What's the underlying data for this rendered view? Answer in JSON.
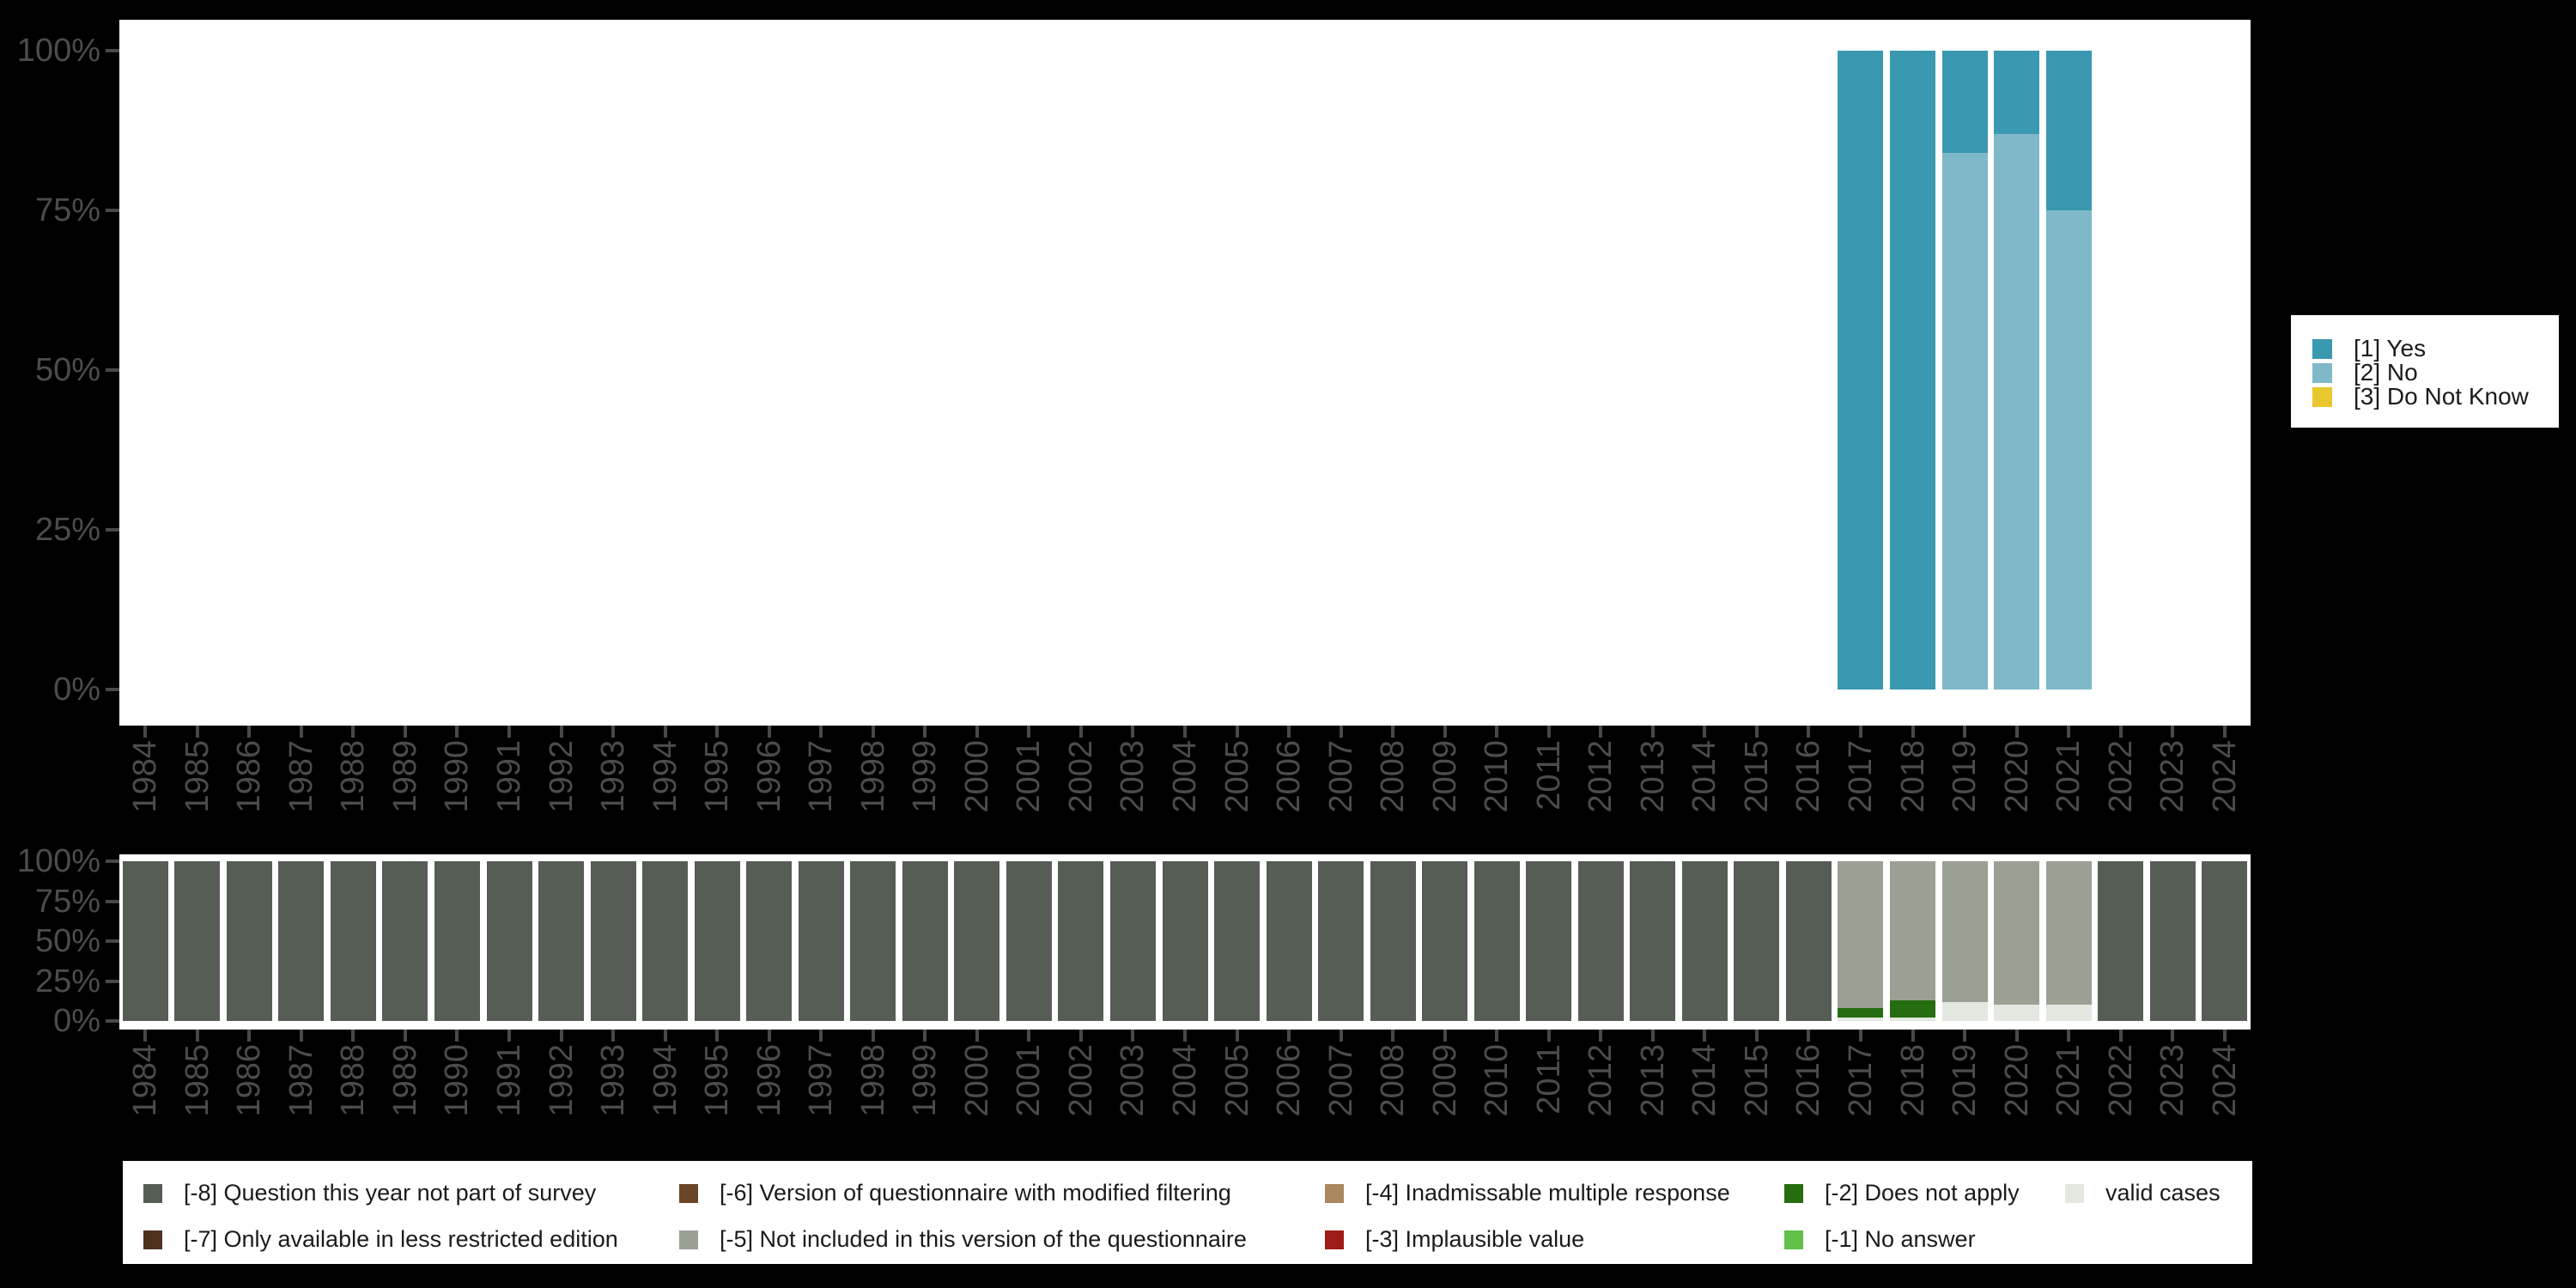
{
  "colors": {
    "background": "#000000",
    "plot_background": "#ffffff",
    "tick_label": "#4c4c4c",
    "tick_mark": "#484848",
    "legend_background": "#ffffff",
    "legend_text": "#1b1b1b"
  },
  "chart_data": [
    {
      "type": "bar",
      "stacked": true,
      "title": "",
      "xlabel": "",
      "ylabel": "",
      "ylim": [
        0,
        100
      ],
      "grid": false,
      "legend_position": "right",
      "y_ticks": [
        "0%",
        "25%",
        "50%",
        "75%",
        "100%"
      ],
      "categories": [
        "1984",
        "1985",
        "1986",
        "1987",
        "1988",
        "1989",
        "1990",
        "1991",
        "1992",
        "1993",
        "1994",
        "1995",
        "1996",
        "1997",
        "1998",
        "1999",
        "2000",
        "2001",
        "2002",
        "2003",
        "2004",
        "2005",
        "2006",
        "2007",
        "2008",
        "2009",
        "2010",
        "2011",
        "2012",
        "2013",
        "2014",
        "2015",
        "2016",
        "2017",
        "2018",
        "2019",
        "2020",
        "2021",
        "2022",
        "2023",
        "2024"
      ],
      "series": [
        {
          "name": "[1] Yes",
          "color": "#3a98b0",
          "values": [
            0,
            0,
            0,
            0,
            0,
            0,
            0,
            0,
            0,
            0,
            0,
            0,
            0,
            0,
            0,
            0,
            0,
            0,
            0,
            0,
            0,
            0,
            0,
            0,
            0,
            0,
            0,
            0,
            0,
            0,
            0,
            0,
            0,
            100,
            100,
            16,
            13,
            25,
            0,
            0,
            0
          ]
        },
        {
          "name": "[2] No",
          "color": "#7fb8c8",
          "values": [
            0,
            0,
            0,
            0,
            0,
            0,
            0,
            0,
            0,
            0,
            0,
            0,
            0,
            0,
            0,
            0,
            0,
            0,
            0,
            0,
            0,
            0,
            0,
            0,
            0,
            0,
            0,
            0,
            0,
            0,
            0,
            0,
            0,
            0,
            0,
            84,
            87,
            75,
            0,
            0,
            0
          ]
        },
        {
          "name": "[3] Do Not Know",
          "color": "#e9c72e",
          "values": [
            0,
            0,
            0,
            0,
            0,
            0,
            0,
            0,
            0,
            0,
            0,
            0,
            0,
            0,
            0,
            0,
            0,
            0,
            0,
            0,
            0,
            0,
            0,
            0,
            0,
            0,
            0,
            0,
            0,
            0,
            0,
            0,
            0,
            0,
            0,
            0,
            0,
            0,
            0,
            0,
            0
          ]
        }
      ]
    },
    {
      "type": "bar",
      "stacked": true,
      "title": "",
      "xlabel": "",
      "ylabel": "",
      "ylim": [
        0,
        100
      ],
      "grid": false,
      "legend_position": "bottom",
      "y_ticks": [
        "0%",
        "25%",
        "50%",
        "75%",
        "100%"
      ],
      "categories": [
        "1984",
        "1985",
        "1986",
        "1987",
        "1988",
        "1989",
        "1990",
        "1991",
        "1992",
        "1993",
        "1994",
        "1995",
        "1996",
        "1997",
        "1998",
        "1999",
        "2000",
        "2001",
        "2002",
        "2003",
        "2004",
        "2005",
        "2006",
        "2007",
        "2008",
        "2009",
        "2010",
        "2011",
        "2012",
        "2013",
        "2014",
        "2015",
        "2016",
        "2017",
        "2018",
        "2019",
        "2020",
        "2021",
        "2022",
        "2023",
        "2024"
      ],
      "series": [
        {
          "name": "[-8] Question this year not part of survey",
          "color": "#555d55",
          "values": [
            100,
            100,
            100,
            100,
            100,
            100,
            100,
            100,
            100,
            100,
            100,
            100,
            100,
            100,
            100,
            100,
            100,
            100,
            100,
            100,
            100,
            100,
            100,
            100,
            100,
            100,
            100,
            100,
            100,
            100,
            100,
            100,
            100,
            0,
            0,
            0,
            0,
            0,
            100,
            100,
            100
          ]
        },
        {
          "name": "[-7] Only available in less restricted edition",
          "color": "#4f3120",
          "values": [
            0,
            0,
            0,
            0,
            0,
            0,
            0,
            0,
            0,
            0,
            0,
            0,
            0,
            0,
            0,
            0,
            0,
            0,
            0,
            0,
            0,
            0,
            0,
            0,
            0,
            0,
            0,
            0,
            0,
            0,
            0,
            0,
            0,
            0,
            0,
            0,
            0,
            0,
            0,
            0,
            0
          ]
        },
        {
          "name": "[-6] Version of questionnaire with modified filtering",
          "color": "#69452a",
          "values": [
            0,
            0,
            0,
            0,
            0,
            0,
            0,
            0,
            0,
            0,
            0,
            0,
            0,
            0,
            0,
            0,
            0,
            0,
            0,
            0,
            0,
            0,
            0,
            0,
            0,
            0,
            0,
            0,
            0,
            0,
            0,
            0,
            0,
            0,
            0,
            0,
            0,
            0,
            0,
            0,
            0
          ]
        },
        {
          "name": "[-5] Not included in this version of the questionnaire",
          "color": "#9ba095",
          "values": [
            0,
            0,
            0,
            0,
            0,
            0,
            0,
            0,
            0,
            0,
            0,
            0,
            0,
            0,
            0,
            0,
            0,
            0,
            0,
            0,
            0,
            0,
            0,
            0,
            0,
            0,
            0,
            0,
            0,
            0,
            0,
            0,
            0,
            92,
            87,
            88,
            90,
            90,
            0,
            0,
            0
          ]
        },
        {
          "name": "[-4] Inadmissable multiple response",
          "color": "#a8885c",
          "values": [
            0,
            0,
            0,
            0,
            0,
            0,
            0,
            0,
            0,
            0,
            0,
            0,
            0,
            0,
            0,
            0,
            0,
            0,
            0,
            0,
            0,
            0,
            0,
            0,
            0,
            0,
            0,
            0,
            0,
            0,
            0,
            0,
            0,
            0,
            0,
            0,
            0,
            0,
            0,
            0,
            0
          ]
        },
        {
          "name": "[-3] Implausible value",
          "color": "#9f1b15",
          "values": [
            0,
            0,
            0,
            0,
            0,
            0,
            0,
            0,
            0,
            0,
            0,
            0,
            0,
            0,
            0,
            0,
            0,
            0,
            0,
            0,
            0,
            0,
            0,
            0,
            0,
            0,
            0,
            0,
            0,
            0,
            0,
            0,
            0,
            0,
            0,
            0,
            0,
            0,
            0,
            0,
            0
          ]
        },
        {
          "name": "[-2] Does not apply",
          "color": "#266c10",
          "values": [
            0,
            0,
            0,
            0,
            0,
            0,
            0,
            0,
            0,
            0,
            0,
            0,
            0,
            0,
            0,
            0,
            0,
            0,
            0,
            0,
            0,
            0,
            0,
            0,
            0,
            0,
            0,
            0,
            0,
            0,
            0,
            0,
            0,
            6,
            11,
            0,
            0,
            0,
            0,
            0,
            0
          ]
        },
        {
          "name": "[-1] No answer",
          "color": "#61bf4a",
          "values": [
            0,
            0,
            0,
            0,
            0,
            0,
            0,
            0,
            0,
            0,
            0,
            0,
            0,
            0,
            0,
            0,
            0,
            0,
            0,
            0,
            0,
            0,
            0,
            0,
            0,
            0,
            0,
            0,
            0,
            0,
            0,
            0,
            0,
            0,
            0,
            0,
            0,
            0,
            0,
            0,
            0
          ]
        },
        {
          "name": "valid cases",
          "color": "#e3e8e0",
          "values": [
            0,
            0,
            0,
            0,
            0,
            0,
            0,
            0,
            0,
            0,
            0,
            0,
            0,
            0,
            0,
            0,
            0,
            0,
            0,
            0,
            0,
            0,
            0,
            0,
            0,
            0,
            0,
            0,
            0,
            0,
            0,
            0,
            0,
            2,
            2,
            12,
            10,
            10,
            0,
            0,
            0
          ]
        }
      ]
    }
  ]
}
